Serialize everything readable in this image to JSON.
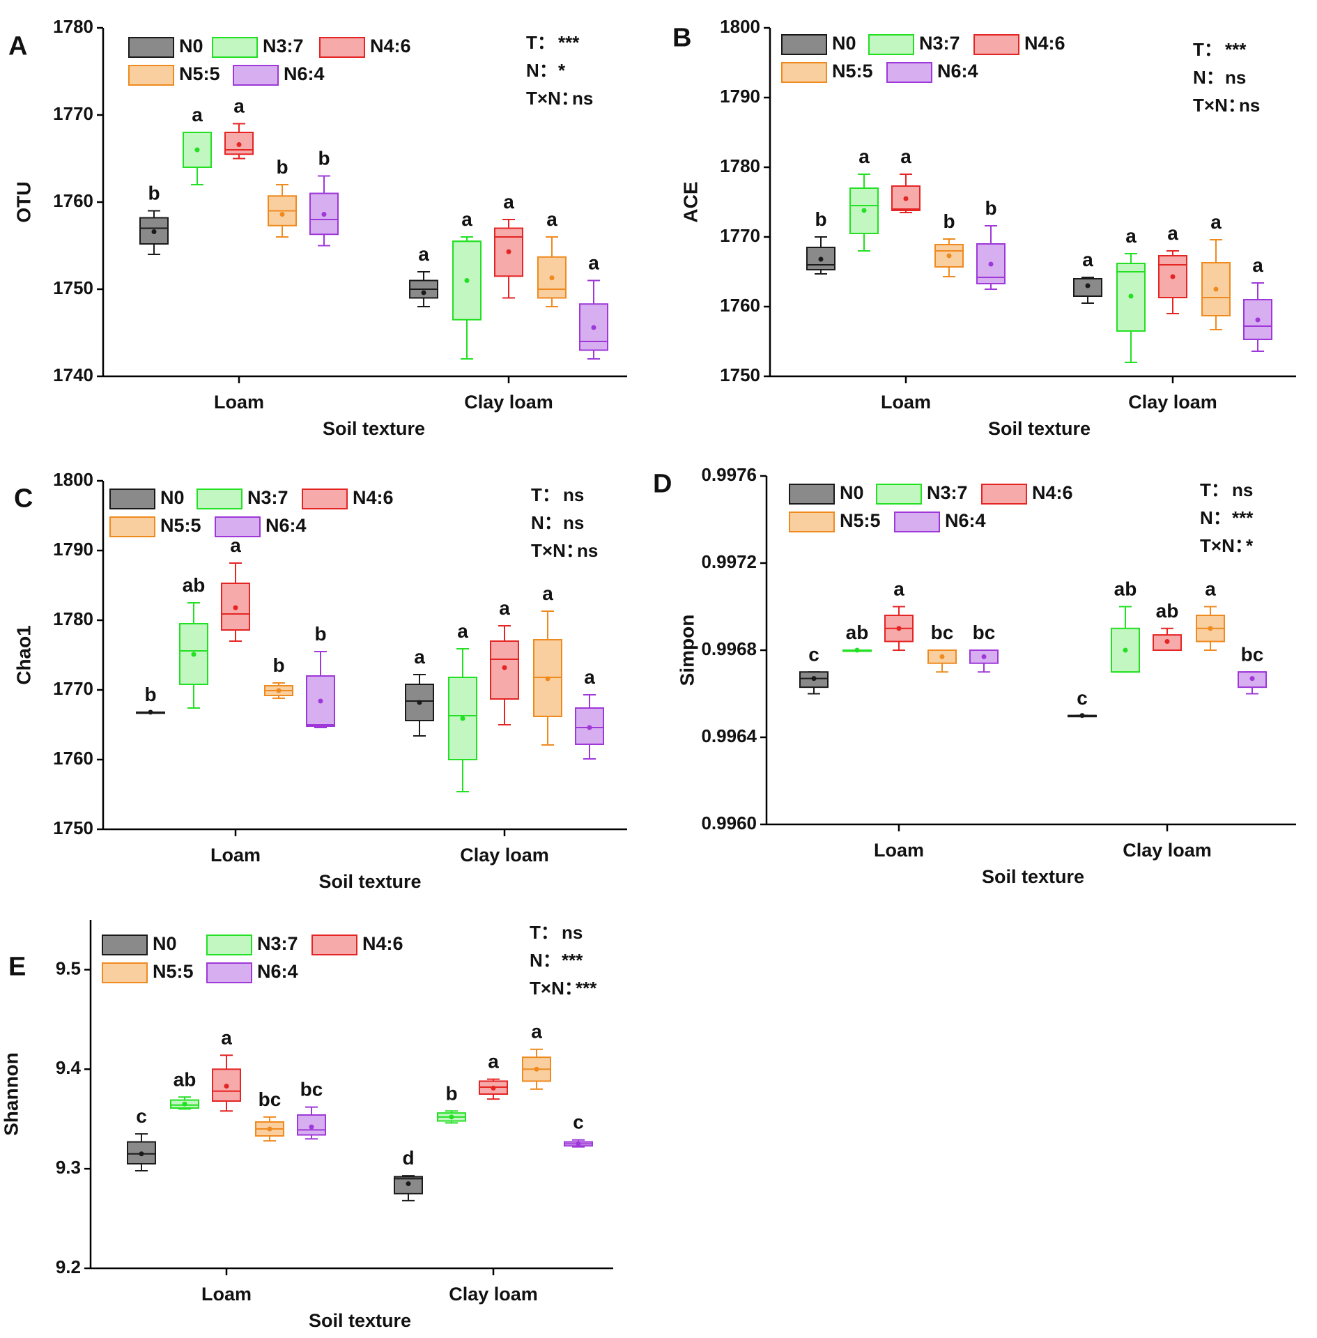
{
  "group_labels": [
    "N0",
    "N3:7",
    "N4:6",
    "N5:5",
    "N6:4"
  ],
  "group_colors": [
    {
      "stroke": "#1a1a1a",
      "fill": "#8a8a8a"
    },
    {
      "stroke": "#22e022",
      "fill": "#c2f7c2"
    },
    {
      "stroke": "#e52424",
      "fill": "#f6aaaa"
    },
    {
      "stroke": "#ef8a1f",
      "fill": "#f9cfa0"
    },
    {
      "stroke": "#9e38d8",
      "fill": "#d7aef0"
    }
  ],
  "chart_data": [
    {
      "type": "box",
      "panel_label": "A",
      "ylabel": "OTU",
      "xlabel": "Soil texture",
      "categories": [
        "Loam",
        "Clay loam"
      ],
      "ylim": [
        1740,
        1780
      ],
      "yticks": [
        "1740",
        "1750",
        "1760",
        "1770",
        "1780"
      ],
      "stats": [
        {
          "label": "T：",
          "value": "***"
        },
        {
          "label": "N：",
          "value": "*"
        },
        {
          "label": "T×N：",
          "value": "ns"
        }
      ],
      "series": [
        {
          "name": "N0",
          "boxes": [
            {
              "min": 1754,
              "q1": 1755.2,
              "median": 1757,
              "q3": 1758.2,
              "max": 1759,
              "mean": 1756.6,
              "letter": "b"
            },
            {
              "min": 1748,
              "q1": 1749,
              "median": 1750,
              "q3": 1751,
              "max": 1752,
              "mean": 1749.6,
              "letter": "a"
            }
          ]
        },
        {
          "name": "N3:7",
          "boxes": [
            {
              "min": 1762,
              "q1": 1764,
              "median": 1768,
              "q3": 1768,
              "max": 1768,
              "mean": 1766,
              "letter": "a"
            },
            {
              "min": 1742,
              "q1": 1746.5,
              "median": 1755.5,
              "q3": 1755.5,
              "max": 1756,
              "mean": 1751,
              "letter": "a"
            }
          ]
        },
        {
          "name": "N4:6",
          "boxes": [
            {
              "min": 1765,
              "q1": 1765.5,
              "median": 1766,
              "q3": 1768,
              "max": 1769,
              "mean": 1766.6,
              "letter": "a"
            },
            {
              "min": 1749,
              "q1": 1751.5,
              "median": 1756,
              "q3": 1757,
              "max": 1758,
              "mean": 1754.3,
              "letter": "a"
            }
          ]
        },
        {
          "name": "N5:5",
          "boxes": [
            {
              "min": 1756,
              "q1": 1757.3,
              "median": 1759,
              "q3": 1760.7,
              "max": 1762,
              "mean": 1758.6,
              "letter": "b"
            },
            {
              "min": 1748,
              "q1": 1749,
              "median": 1750,
              "q3": 1753.7,
              "max": 1756,
              "mean": 1751.3,
              "letter": "a"
            }
          ]
        },
        {
          "name": "N6:4",
          "boxes": [
            {
              "min": 1755,
              "q1": 1756.3,
              "median": 1758,
              "q3": 1761,
              "max": 1763,
              "mean": 1758.6,
              "letter": "b"
            },
            {
              "min": 1742,
              "q1": 1743,
              "median": 1744,
              "q3": 1748.3,
              "max": 1751,
              "mean": 1745.6,
              "letter": "a"
            }
          ]
        }
      ]
    },
    {
      "type": "box",
      "panel_label": "B",
      "ylabel": "ACE",
      "xlabel": "Soil texture",
      "categories": [
        "Loam",
        "Clay loam"
      ],
      "ylim": [
        1750,
        1800
      ],
      "yticks": [
        "1750",
        "1760",
        "1770",
        "1780",
        "1790",
        "1800"
      ],
      "stats": [
        {
          "label": "T：",
          "value": "***"
        },
        {
          "label": "N：",
          "value": "ns"
        },
        {
          "label": "T×N：",
          "value": "ns"
        }
      ],
      "series": [
        {
          "name": "N0",
          "boxes": [
            {
              "min": 1764.7,
              "q1": 1765.3,
              "median": 1766,
              "q3": 1768.5,
              "max": 1770,
              "mean": 1766.8,
              "letter": "b"
            },
            {
              "min": 1760.5,
              "q1": 1761.5,
              "median": 1764,
              "q3": 1764,
              "max": 1764.2,
              "mean": 1763,
              "letter": "a"
            }
          ]
        },
        {
          "name": "N3:7",
          "boxes": [
            {
              "min": 1768,
              "q1": 1770.5,
              "median": 1774.5,
              "q3": 1777,
              "max": 1779,
              "mean": 1773.8,
              "letter": "a"
            },
            {
              "min": 1752,
              "q1": 1756.5,
              "median": 1765,
              "q3": 1766.2,
              "max": 1767.6,
              "mean": 1761.5,
              "letter": "a"
            }
          ]
        },
        {
          "name": "N4:6",
          "boxes": [
            {
              "min": 1773.5,
              "q1": 1773.8,
              "median": 1774,
              "q3": 1777.3,
              "max": 1779,
              "mean": 1775.5,
              "letter": "a"
            },
            {
              "min": 1759,
              "q1": 1761.3,
              "median": 1766,
              "q3": 1767.3,
              "max": 1768,
              "mean": 1764.3,
              "letter": "a"
            }
          ]
        },
        {
          "name": "N5:5",
          "boxes": [
            {
              "min": 1764.3,
              "q1": 1765.7,
              "median": 1768,
              "q3": 1768.9,
              "max": 1769.7,
              "mean": 1767.3,
              "letter": "b"
            },
            {
              "min": 1756.7,
              "q1": 1758.7,
              "median": 1761.3,
              "q3": 1766.3,
              "max": 1769.6,
              "mean": 1762.5,
              "letter": "a"
            }
          ]
        },
        {
          "name": "N6:4",
          "boxes": [
            {
              "min": 1762.5,
              "q1": 1763.3,
              "median": 1764.2,
              "q3": 1769,
              "max": 1771.6,
              "mean": 1766.1,
              "letter": "b"
            },
            {
              "min": 1753.6,
              "q1": 1755.3,
              "median": 1757.2,
              "q3": 1761,
              "max": 1763.4,
              "mean": 1758.1,
              "letter": "a"
            }
          ]
        }
      ]
    },
    {
      "type": "box",
      "panel_label": "C",
      "ylabel": "Chao1",
      "xlabel": "Soil texture",
      "categories": [
        "Loam",
        "Clay loam"
      ],
      "ylim": [
        1750,
        1800
      ],
      "yticks": [
        "1750",
        "1760",
        "1770",
        "1780",
        "1790",
        "1800"
      ],
      "stats": [
        {
          "label": "T：",
          "value": "ns"
        },
        {
          "label": "N：",
          "value": "ns"
        },
        {
          "label": "T×N：",
          "value": "ns"
        }
      ],
      "series": [
        {
          "name": "N0",
          "boxes": [
            {
              "min": 1766.8,
              "q1": 1766.8,
              "median": 1766.8,
              "q3": 1766.8,
              "max": 1766.8,
              "mean": 1766.8,
              "letter": "b"
            },
            {
              "min": 1763.4,
              "q1": 1765.6,
              "median": 1768.4,
              "q3": 1770.8,
              "max": 1772.2,
              "mean": 1768.2,
              "letter": "a"
            }
          ]
        },
        {
          "name": "N3:7",
          "boxes": [
            {
              "min": 1767.4,
              "q1": 1770.8,
              "median": 1775.6,
              "q3": 1779.5,
              "max": 1782.5,
              "mean": 1775.1,
              "letter": "ab"
            },
            {
              "min": 1755.4,
              "q1": 1760,
              "median": 1766.3,
              "q3": 1771.8,
              "max": 1775.9,
              "mean": 1765.9,
              "letter": "a"
            }
          ]
        },
        {
          "name": "N4:6",
          "boxes": [
            {
              "min": 1777,
              "q1": 1778.6,
              "median": 1780.9,
              "q3": 1785.3,
              "max": 1788.2,
              "mean": 1781.8,
              "letter": "a"
            },
            {
              "min": 1765,
              "q1": 1768.7,
              "median": 1774.4,
              "q3": 1777,
              "max": 1779.2,
              "mean": 1773.2,
              "letter": "a"
            }
          ]
        },
        {
          "name": "N5:5",
          "boxes": [
            {
              "min": 1768.8,
              "q1": 1769.2,
              "median": 1769.9,
              "q3": 1770.6,
              "max": 1771,
              "mean": 1769.9,
              "letter": "b"
            },
            {
              "min": 1762.1,
              "q1": 1766.2,
              "median": 1771.8,
              "q3": 1777.2,
              "max": 1781.3,
              "mean": 1771.6,
              "letter": "a"
            }
          ]
        },
        {
          "name": "N6:4",
          "boxes": [
            {
              "min": 1764.6,
              "q1": 1764.8,
              "median": 1765,
              "q3": 1772,
              "max": 1775.5,
              "mean": 1768.4,
              "letter": "b"
            },
            {
              "min": 1760.1,
              "q1": 1762.2,
              "median": 1764.6,
              "q3": 1767.4,
              "max": 1769.3,
              "mean": 1764.6,
              "letter": "a"
            }
          ]
        }
      ]
    },
    {
      "type": "box",
      "panel_label": "D",
      "ylabel": "Simpon",
      "xlabel": "Soil texture",
      "categories": [
        "Loam",
        "Clay loam"
      ],
      "ylim": [
        0.996,
        0.9976
      ],
      "yticks": [
        "0.9960",
        "0.9964",
        "0.9968",
        "0.9972",
        "0.9976"
      ],
      "stats": [
        {
          "label": "T：",
          "value": "ns"
        },
        {
          "label": "N：",
          "value": "***"
        },
        {
          "label": "T×N：",
          "value": "*"
        }
      ],
      "series": [
        {
          "name": "N0",
          "boxes": [
            {
              "min": 0.9966,
              "q1": 0.99663,
              "median": 0.99667,
              "q3": 0.9967,
              "max": 0.9967,
              "mean": 0.99667,
              "letter": "c"
            },
            {
              "min": 0.9965,
              "q1": 0.9965,
              "median": 0.9965,
              "q3": 0.9965,
              "max": 0.9965,
              "mean": 0.9965,
              "letter": "c"
            }
          ]
        },
        {
          "name": "N3:7",
          "boxes": [
            {
              "min": 0.9968,
              "q1": 0.9968,
              "median": 0.9968,
              "q3": 0.9968,
              "max": 0.9968,
              "mean": 0.9968,
              "letter": "ab"
            },
            {
              "min": 0.9967,
              "q1": 0.9967,
              "median": 0.9967,
              "q3": 0.9969,
              "max": 0.997,
              "mean": 0.9968,
              "letter": "ab"
            }
          ]
        },
        {
          "name": "N4:6",
          "boxes": [
            {
              "min": 0.9968,
              "q1": 0.99684,
              "median": 0.9969,
              "q3": 0.99696,
              "max": 0.997,
              "mean": 0.9969,
              "letter": "a"
            },
            {
              "min": 0.9968,
              "q1": 0.9968,
              "median": 0.9968,
              "q3": 0.99687,
              "max": 0.9969,
              "mean": 0.99684,
              "letter": "ab"
            }
          ]
        },
        {
          "name": "N5:5",
          "boxes": [
            {
              "min": 0.9967,
              "q1": 0.99674,
              "median": 0.9968,
              "q3": 0.9968,
              "max": 0.9968,
              "mean": 0.99677,
              "letter": "bc"
            },
            {
              "min": 0.9968,
              "q1": 0.99684,
              "median": 0.9969,
              "q3": 0.99696,
              "max": 0.997,
              "mean": 0.9969,
              "letter": "a"
            }
          ]
        },
        {
          "name": "N6:4",
          "boxes": [
            {
              "min": 0.9967,
              "q1": 0.99674,
              "median": 0.9968,
              "q3": 0.9968,
              "max": 0.9968,
              "mean": 0.99677,
              "letter": "bc"
            },
            {
              "min": 0.9966,
              "q1": 0.99663,
              "median": 0.9967,
              "q3": 0.9967,
              "max": 0.9967,
              "mean": 0.99667,
              "letter": "bc"
            }
          ]
        }
      ]
    },
    {
      "type": "box",
      "panel_label": "E",
      "ylabel": "Shannon",
      "xlabel": "Soil texture",
      "categories": [
        "Loam",
        "Clay loam"
      ],
      "ylim": [
        9.2,
        9.55
      ],
      "yticks": [
        "9.2",
        "9.3",
        "9.4",
        "9.5"
      ],
      "stats": [
        {
          "label": "T：",
          "value": "ns"
        },
        {
          "label": "N：",
          "value": "***"
        },
        {
          "label": "T×N：",
          "value": "***"
        }
      ],
      "series": [
        {
          "name": "N0",
          "boxes": [
            {
              "min": 9.298,
              "q1": 9.305,
              "median": 9.315,
              "q3": 9.327,
              "max": 9.335,
              "mean": 9.315,
              "letter": "c"
            },
            {
              "min": 9.268,
              "q1": 9.275,
              "median": 9.29,
              "q3": 9.292,
              "max": 9.293,
              "mean": 9.285,
              "letter": "d"
            }
          ]
        },
        {
          "name": "N3:7",
          "boxes": [
            {
              "min": 9.36,
              "q1": 9.361,
              "median": 9.364,
              "q3": 9.369,
              "max": 9.372,
              "mean": 9.365,
              "letter": "ab"
            },
            {
              "min": 9.346,
              "q1": 9.348,
              "median": 9.352,
              "q3": 9.356,
              "max": 9.358,
              "mean": 9.352,
              "letter": "b"
            }
          ]
        },
        {
          "name": "N4:6",
          "boxes": [
            {
              "min": 9.358,
              "q1": 9.368,
              "median": 9.378,
              "q3": 9.4,
              "max": 9.414,
              "mean": 9.383,
              "letter": "a"
            },
            {
              "min": 9.37,
              "q1": 9.375,
              "median": 9.382,
              "q3": 9.388,
              "max": 9.39,
              "mean": 9.381,
              "letter": "a"
            }
          ]
        },
        {
          "name": "N5:5",
          "boxes": [
            {
              "min": 9.328,
              "q1": 9.333,
              "median": 9.34,
              "q3": 9.347,
              "max": 9.352,
              "mean": 9.34,
              "letter": "bc"
            },
            {
              "min": 9.38,
              "q1": 9.388,
              "median": 9.4,
              "q3": 9.412,
              "max": 9.42,
              "mean": 9.4,
              "letter": "a"
            }
          ]
        },
        {
          "name": "N6:4",
          "boxes": [
            {
              "min": 9.33,
              "q1": 9.334,
              "median": 9.339,
              "q3": 9.354,
              "max": 9.362,
              "mean": 9.342,
              "letter": "bc"
            },
            {
              "min": 9.322,
              "q1": 9.323,
              "median": 9.325,
              "q3": 9.327,
              "max": 9.329,
              "mean": 9.325,
              "letter": "c"
            }
          ]
        }
      ]
    }
  ]
}
